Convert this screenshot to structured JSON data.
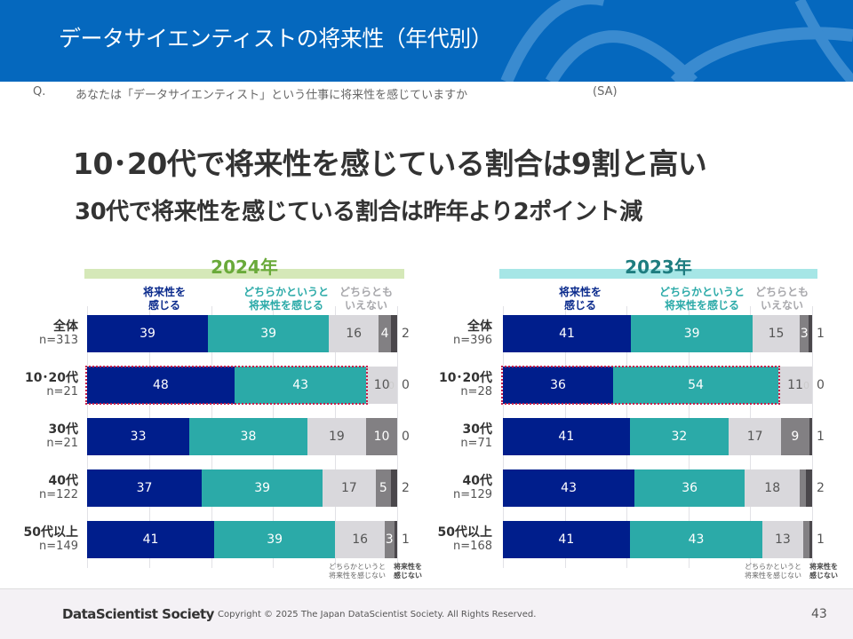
{
  "header": {
    "title": "データサイエンティストの将来性（年代別）"
  },
  "question": {
    "prefix": "Q.",
    "text": "あなたは「データサイエンティスト」という仕事に将来性を感じていますか",
    "type": "(SA)"
  },
  "headline": {
    "line1": "10･20代で将来性を感じている割合は9割と高い",
    "line2": "30代で将来性を感じている割合は昨年より2ポイント減"
  },
  "footer": {
    "brand": "DataScientist Society",
    "copyright": "Copyright © 2025  The Japan DataScientist Society. All Rights Reserved.",
    "page": "43"
  },
  "colors": {
    "feel": "#001E8C",
    "somewhat_feel": "#2BAAA8",
    "neither": "#D9D8DC",
    "somewhat_not": "#828083",
    "not": "#4A474B",
    "highlight": "#C8204A"
  },
  "chart_data": [
    {
      "type": "bar",
      "stacked": true,
      "orientation": "horizontal",
      "title": "2024年",
      "legend": [
        "将来性を感じる",
        "どちらかというと将来性を感じる",
        "どちらともいえない",
        "どちらかというと将来性を感じない",
        "将来性を感じない"
      ],
      "header_labels": {
        "feel": "将来性を\n感じる",
        "somewhat": "どちらかというと\n将来性を感じる",
        "neither": "どちらとも\nいえない"
      },
      "foot_labels": {
        "somewhat_not": "どちらかというと\n将来性を感じない",
        "not": "将来性を\n感じない"
      },
      "categories": [
        "全体",
        "10･20代",
        "30代",
        "40代",
        "50代以上"
      ],
      "n": [
        "n=313",
        "n=21",
        "n=21",
        "n=122",
        "n=149"
      ],
      "highlight_row": 1,
      "series": [
        {
          "name": "将来性を感じる",
          "values": [
            39,
            48,
            33,
            37,
            41
          ]
        },
        {
          "name": "どちらかというと将来性を感じる",
          "values": [
            39,
            43,
            38,
            39,
            39
          ]
        },
        {
          "name": "どちらともいえない",
          "values": [
            16,
            10,
            19,
            17,
            16
          ]
        },
        {
          "name": "どちらかというと将来性を感じない",
          "values": [
            4,
            0,
            10,
            5,
            3
          ]
        },
        {
          "name": "将来性を感じない",
          "values": [
            2,
            0,
            0,
            2,
            1
          ]
        }
      ],
      "xlim": [
        0,
        100
      ],
      "grid": true
    },
    {
      "type": "bar",
      "stacked": true,
      "orientation": "horizontal",
      "title": "2023年",
      "legend": [
        "将来性を感じる",
        "どちらかというと将来性を感じる",
        "どちらともいえない",
        "どちらかというと将来性を感じない",
        "将来性を感じない"
      ],
      "header_labels": {
        "feel": "将来性を\n感じる",
        "somewhat": "どちらかというと\n将来性を感じる",
        "neither": "どちらとも\nいえない"
      },
      "foot_labels": {
        "somewhat_not": "どちらかというと\n将来性を感じない",
        "not": "将来性を\n感じない"
      },
      "categories": [
        "全体",
        "10･20代",
        "30代",
        "40代",
        "50代以上"
      ],
      "n": [
        "n=396",
        "n=28",
        "n=71",
        "n=129",
        "n=168"
      ],
      "highlight_row": 1,
      "series": [
        {
          "name": "将来性を感じる",
          "values": [
            41,
            36,
            41,
            43,
            41
          ]
        },
        {
          "name": "どちらかというと将来性を感じる",
          "values": [
            39,
            54,
            32,
            36,
            43
          ]
        },
        {
          "name": "どちらともいえない",
          "values": [
            15,
            11,
            17,
            18,
            13
          ]
        },
        {
          "name": "どちらかというと将来性を感じない",
          "values": [
            3,
            0,
            9,
            2,
            2
          ]
        },
        {
          "name": "将来性を感じない",
          "values": [
            1,
            0,
            1,
            2,
            1
          ]
        }
      ],
      "xlim": [
        0,
        100
      ],
      "grid": true
    }
  ]
}
